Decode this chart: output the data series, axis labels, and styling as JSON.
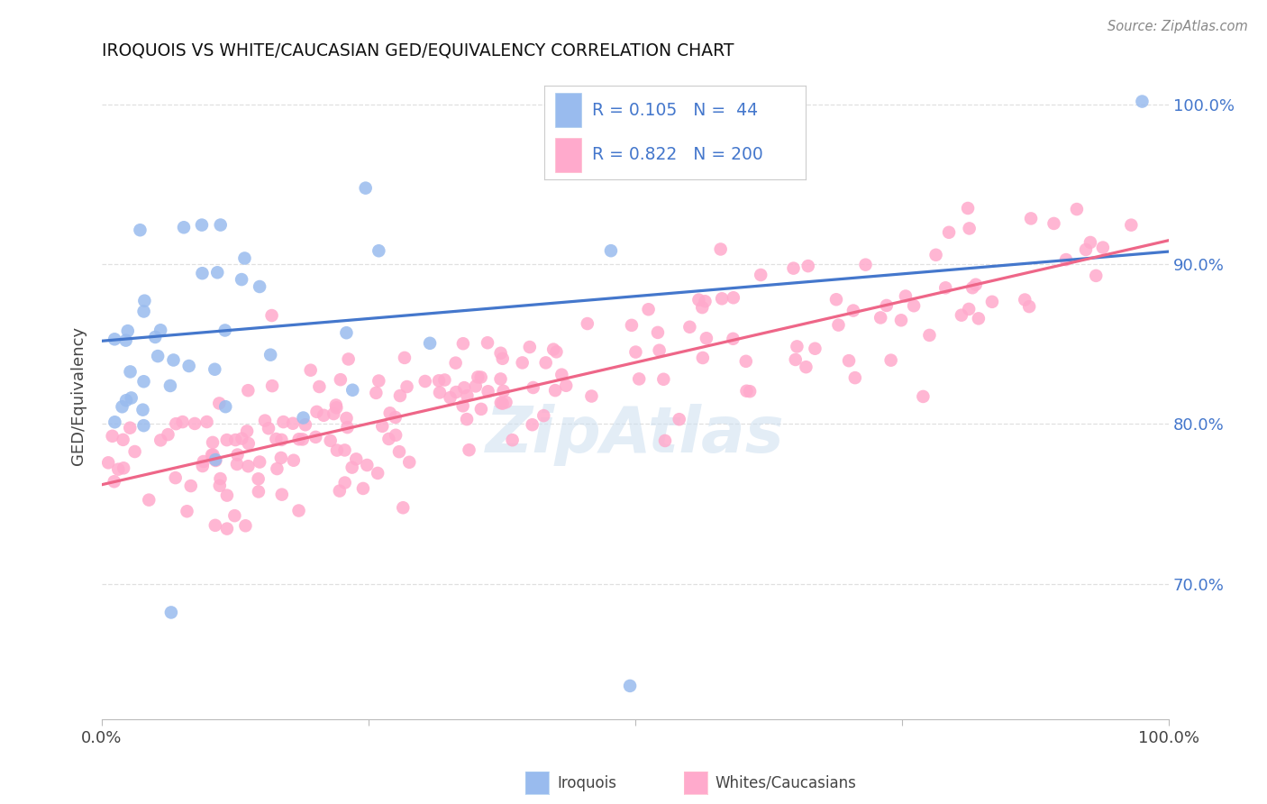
{
  "title": "IROQUOIS VS WHITE/CAUCASIAN GED/EQUIVALENCY CORRELATION CHART",
  "source": "Source: ZipAtlas.com",
  "ylabel": "GED/Equivalency",
  "legend_label1": "Iroquois",
  "legend_label2": "Whites/Caucasians",
  "R1": 0.105,
  "N1": 44,
  "R2": 0.822,
  "N2": 200,
  "blue_color": "#99BBEE",
  "pink_color": "#FFAACC",
  "blue_line_color": "#4477CC",
  "pink_line_color": "#EE6688",
  "background_color": "#FFFFFF",
  "grid_color": "#DDDDDD",
  "ytick_color": "#4477CC",
  "legend_text_color": "#4477CC",
  "watermark_color": "#CCDFF0",
  "xlim": [
    0.0,
    1.0
  ],
  "ylim": [
    0.615,
    1.02
  ],
  "yticks": [
    0.7,
    0.8,
    0.9,
    1.0
  ],
  "ytick_labels": [
    "70.0%",
    "80.0%",
    "90.0%",
    "100.0%"
  ],
  "blue_line_y0": 0.852,
  "blue_line_y1": 0.908,
  "pink_line_y0": 0.762,
  "pink_line_y1": 0.915
}
